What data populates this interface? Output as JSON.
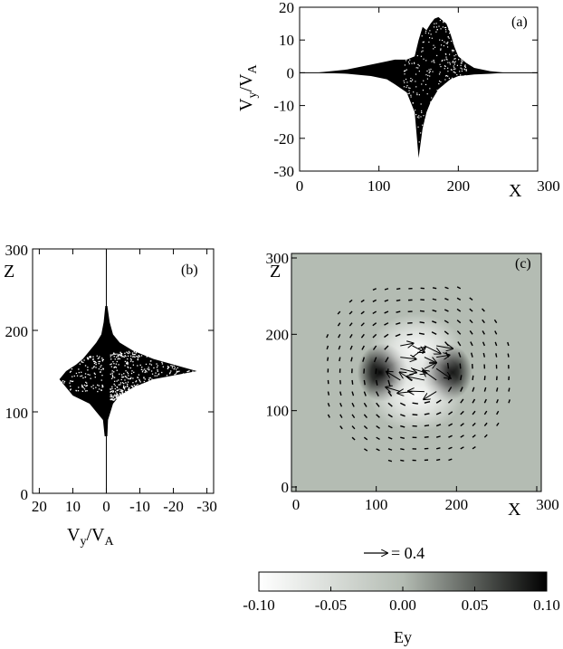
{
  "colors": {
    "ink": "#000000",
    "background": "#ffffff",
    "field_background": "#b4bcb3",
    "colorbar_low": "#ffffff",
    "colorbar_mid": "#b4bcb3",
    "colorbar_high": "#000000"
  },
  "chart_data": [
    {
      "id": "a",
      "type": "scatter",
      "panel_label": "(a)",
      "xlabel": "X",
      "ylabel": "V_y/V_A",
      "ylabel_main": "V",
      "ylabel_sub": "y",
      "ylabel_mid": "/V",
      "ylabel_sub2": "A",
      "xlim": [
        0,
        300
      ],
      "ylim": [
        -30,
        20
      ],
      "xticks": [
        0,
        100,
        200,
        300
      ],
      "yticks": [
        -30,
        -20,
        -10,
        0,
        10,
        20
      ],
      "envelope": {
        "x": [
          20,
          60,
          90,
          110,
          120,
          135,
          145,
          150,
          155,
          160,
          165,
          170,
          175,
          180,
          185,
          190,
          195,
          200,
          210,
          220,
          240,
          260
        ],
        "y_upper": [
          0,
          1,
          2.5,
          3.5,
          4,
          4,
          5,
          10,
          14,
          13,
          15,
          16.5,
          17,
          16,
          15,
          12,
          8,
          5,
          3,
          1.5,
          0.5,
          0
        ],
        "y_lower": [
          0,
          -0.3,
          -1,
          -2,
          -3.5,
          -6,
          -12,
          -26,
          -17,
          -12,
          -9,
          -7,
          -5,
          -4,
          -3,
          -2,
          -1.5,
          -1,
          -0.8,
          -0.5,
          -0.3,
          0
        ]
      }
    },
    {
      "id": "b",
      "type": "scatter",
      "panel_label": "(b)",
      "xlabel": "V_y/V_A",
      "xlabel_main": "V",
      "xlabel_sub": "y",
      "xlabel_mid": "/V",
      "xlabel_sub2": "A",
      "ylabel": "Z",
      "xlim": [
        22,
        -32
      ],
      "ylim": [
        0,
        300
      ],
      "xticks": [
        20,
        10,
        0,
        -10,
        -20,
        -30
      ],
      "yticks": [
        0,
        100,
        200,
        300
      ],
      "envelope": {
        "z": [
          70,
          90,
          110,
          120,
          130,
          140,
          150,
          158,
          165,
          175,
          185,
          195,
          210,
          230
        ],
        "v_pos": [
          0.5,
          1,
          5,
          10,
          12,
          14,
          12,
          9,
          7,
          5,
          3,
          1.5,
          0.8,
          0.3
        ],
        "v_neg": [
          -0.3,
          -0.5,
          -2,
          -4,
          -8,
          -14,
          -27,
          -20,
          -14,
          -8,
          -4,
          -2,
          -1,
          -0.3
        ]
      }
    },
    {
      "id": "c",
      "type": "heatmap",
      "panel_label": "(c)",
      "xlabel": "X",
      "ylabel": "Z",
      "xlim": [
        0,
        300
      ],
      "ylim": [
        0,
        300
      ],
      "xticks": [
        0,
        100,
        200,
        300
      ],
      "yticks": [
        0,
        100,
        200,
        300
      ],
      "colorbar": {
        "label": "Ey",
        "range": [
          -0.1,
          0.1
        ],
        "ticks": [
          "-0.10",
          "-0.05",
          "0.00",
          "0.05",
          "0.10"
        ]
      },
      "blobs": [
        {
          "x": 108,
          "z": 150,
          "value": 0.1
        },
        {
          "x": 188,
          "z": 150,
          "value": 0.1
        },
        {
          "x": 150,
          "z": 180,
          "value": -0.06
        },
        {
          "x": 150,
          "z": 120,
          "value": -0.06
        }
      ],
      "vector_key": {
        "label": "= 0.4",
        "magnitude": 0.4
      }
    }
  ]
}
